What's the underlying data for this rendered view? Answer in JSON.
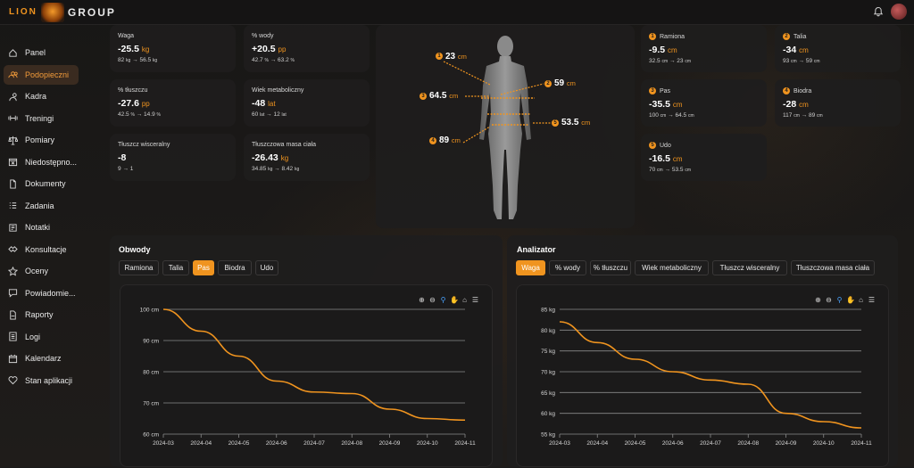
{
  "header": {
    "logo_text_left": "LION",
    "logo_text_right": "GROUP"
  },
  "sidebar": {
    "items": [
      {
        "label": "Panel",
        "icon": "home-icon",
        "active": false
      },
      {
        "label": "Podopieczni",
        "icon": "users-icon",
        "active": true
      },
      {
        "label": "Kadra",
        "icon": "staff-icon",
        "active": false
      },
      {
        "label": "Treningi",
        "icon": "dumbbell-icon",
        "active": false
      },
      {
        "label": "Pomiary",
        "icon": "scale-icon",
        "active": false
      },
      {
        "label": "Niedostępno...",
        "icon": "calendar-x-icon",
        "active": false
      },
      {
        "label": "Dokumenty",
        "icon": "document-icon",
        "active": false
      },
      {
        "label": "Zadania",
        "icon": "tasks-icon",
        "active": false
      },
      {
        "label": "Notatki",
        "icon": "note-icon",
        "active": false
      },
      {
        "label": "Konsultacje",
        "icon": "handshake-icon",
        "active": false
      },
      {
        "label": "Oceny",
        "icon": "star-icon",
        "active": false
      },
      {
        "label": "Powiadomie...",
        "icon": "message-icon",
        "active": false
      },
      {
        "label": "Raporty",
        "icon": "pdf-icon",
        "active": false
      },
      {
        "label": "Logi",
        "icon": "log-icon",
        "active": false
      },
      {
        "label": "Kalendarz",
        "icon": "calendar-icon",
        "active": false
      },
      {
        "label": "Stan aplikacji",
        "icon": "heart-icon",
        "active": false
      }
    ]
  },
  "stats_left": [
    {
      "label": "Waga",
      "value": "-25.5",
      "unit": "kg",
      "from": "82",
      "from_u": "kg",
      "to": "56.5",
      "to_u": "kg"
    },
    {
      "label": "% wody",
      "value": "+20.5",
      "unit": "pp",
      "from": "42.7",
      "from_u": "%",
      "to": "63.2",
      "to_u": "%"
    },
    {
      "label": "% tłuszczu",
      "value": "-27.6",
      "unit": "pp",
      "from": "42.5",
      "from_u": "%",
      "to": "14.9",
      "to_u": "%"
    },
    {
      "label": "Wiek metaboliczny",
      "value": "-48",
      "unit": "lat",
      "from": "60",
      "from_u": "lat",
      "to": "12",
      "to_u": "lat"
    },
    {
      "label": "Tłuszcz wisceralny",
      "value": "-8",
      "unit": "",
      "from": "9",
      "from_u": "",
      "to": "1",
      "to_u": ""
    },
    {
      "label": "Tłuszczowa masa ciała",
      "value": "-26.43",
      "unit": "kg",
      "from": "34.85",
      "from_u": "kg",
      "to": "8.42",
      "to_u": "kg"
    }
  ],
  "body_map": [
    {
      "num": "1",
      "value": "23",
      "unit": "cm"
    },
    {
      "num": "2",
      "value": "59",
      "unit": "cm"
    },
    {
      "num": "3",
      "value": "64.5",
      "unit": "cm"
    },
    {
      "num": "4",
      "value": "89",
      "unit": "cm"
    },
    {
      "num": "5",
      "value": "53.5",
      "unit": "cm"
    }
  ],
  "stats_right": [
    {
      "num": "1",
      "label": "Ramiona",
      "value": "-9.5",
      "unit": "cm",
      "from": "32.5",
      "to": "23",
      "u": "cm"
    },
    {
      "num": "2",
      "label": "Talia",
      "value": "-34",
      "unit": "cm",
      "from": "93",
      "to": "59",
      "u": "cm"
    },
    {
      "num": "3",
      "label": "Pas",
      "value": "-35.5",
      "unit": "cm",
      "from": "100",
      "to": "64.5",
      "u": "cm"
    },
    {
      "num": "4",
      "label": "Biodra",
      "value": "-28",
      "unit": "cm",
      "from": "117",
      "to": "89",
      "u": "cm"
    },
    {
      "num": "5",
      "label": "Udo",
      "value": "-16.5",
      "unit": "cm",
      "from": "70",
      "to": "53.5",
      "u": "cm"
    }
  ],
  "obwody": {
    "title": "Obwody",
    "tabs": [
      "Ramiona",
      "Talia",
      "Pas",
      "Biodra",
      "Udo"
    ],
    "active_tab": "Pas"
  },
  "analizator": {
    "title": "Analizator",
    "tabs": [
      "Waga",
      "% wody",
      "% tłuszczu",
      "Wiek metaboliczny",
      "Tłuszcz wisceralny",
      "Tłuszczowa masa ciała"
    ],
    "active_tab": "Waga"
  },
  "colors": {
    "accent": "#f0941f",
    "grid": "#8a8a8a"
  },
  "chart_data": [
    {
      "type": "line",
      "x": [
        "2024-03",
        "2024-04",
        "2024-05",
        "2024-06",
        "2024-07",
        "2024-08",
        "2024-09",
        "2024-10",
        "2024-11"
      ],
      "ytick_labels": [
        "60 cm",
        "70 cm",
        "80 cm",
        "90 cm",
        "100 cm"
      ],
      "ylim": [
        60,
        100
      ],
      "series": [
        {
          "values": [
            100,
            93,
            85,
            77,
            73.5,
            73,
            68,
            65,
            64.5
          ]
        }
      ]
    },
    {
      "type": "line",
      "x": [
        "2024-03",
        "2024-04",
        "2024-05",
        "2024-06",
        "2024-07",
        "2024-08",
        "2024-09",
        "2024-10",
        "2024-11"
      ],
      "ytick_labels": [
        "55 kg",
        "60 kg",
        "65 kg",
        "70 kg",
        "75 kg",
        "80 kg",
        "85 kg"
      ],
      "ylim": [
        55,
        85
      ],
      "series": [
        {
          "values": [
            82,
            77,
            73,
            70,
            68,
            67,
            60,
            58,
            56.5
          ]
        }
      ]
    }
  ]
}
